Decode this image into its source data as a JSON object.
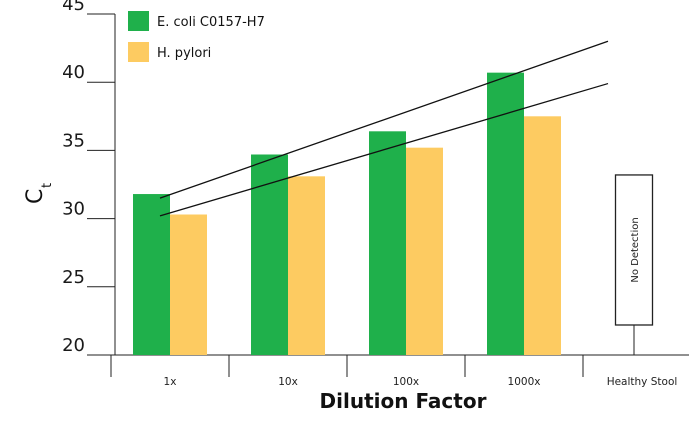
{
  "chart_data": {
    "type": "bar",
    "title": "",
    "xlabel": "Dilution Factor",
    "ylabel": "C",
    "ylabel_subscript": "t",
    "ylim": [
      20,
      45
    ],
    "yticks": [
      "20",
      "25",
      "30",
      "35",
      "40",
      "45"
    ],
    "categories": [
      "1x",
      "10x",
      "100x",
      "1000x",
      "Healthy Stool"
    ],
    "series": [
      {
        "name": "E. coli C0157-H7",
        "color": "#1fb04b",
        "values": [
          31.8,
          34.7,
          36.4,
          40.7,
          null
        ]
      },
      {
        "name": "H. pylori",
        "color": "#fdcb61",
        "values": [
          30.3,
          33.1,
          35.2,
          37.5,
          null
        ]
      }
    ],
    "trendlines": [
      {
        "series": "E. coli C0157-H7",
        "x": [
          "1x",
          "1000x"
        ],
        "y": [
          31.5,
          43.0
        ]
      },
      {
        "series": "H. pylori",
        "x": [
          "1x",
          "1000x"
        ],
        "y": [
          30.2,
          39.9
        ]
      }
    ],
    "annotations": [
      {
        "category": "Healthy Stool",
        "text": "No Detection",
        "y_range": [
          22.2,
          33.2
        ],
        "stem_to": 20
      }
    ],
    "legend": {
      "position": "top-left"
    },
    "grid": false
  }
}
